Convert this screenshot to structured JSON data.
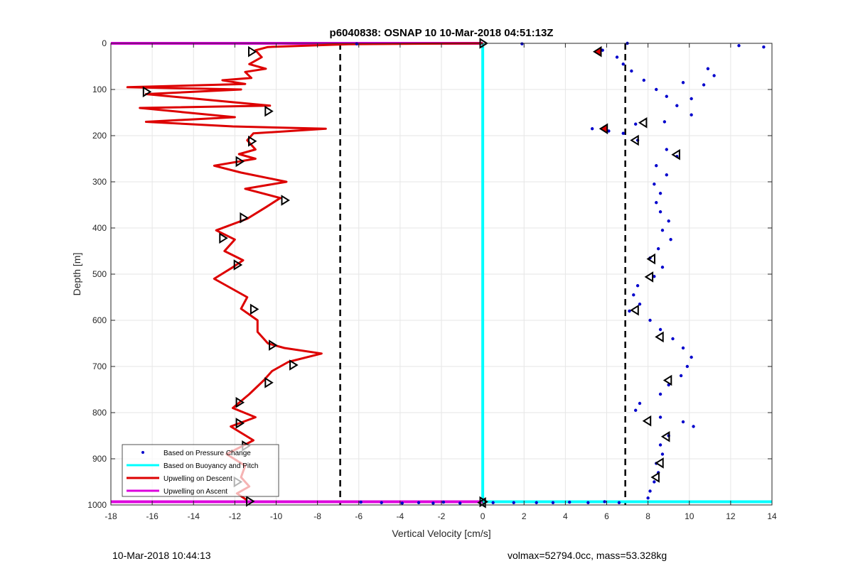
{
  "colors": {
    "pressure": "#0000cc",
    "buoyancy": "#00ffff",
    "descent": "#dd0000",
    "ascent": "#dd00dd",
    "grid": "#e6e6e6",
    "axis": "#262626",
    "threshold": "#000000"
  },
  "chart_data": {
    "type": "scatter",
    "title": "p6040838: OSNAP 10 10-Mar-2018 04:51:13Z",
    "xlabel": "Vertical Velocity [cm/s]",
    "ylabel": "Depth [m]",
    "xlim": [
      -18,
      14
    ],
    "ylim": [
      0,
      1000
    ],
    "y_reversed": true,
    "grid": true,
    "x_ticks": [
      "-18",
      "-16",
      "-14",
      "-12",
      "-10",
      "-8",
      "-6",
      "-4",
      "-2",
      "0",
      "2",
      "4",
      "6",
      "8",
      "10",
      "12",
      "14"
    ],
    "y_ticks": [
      "0",
      "100",
      "200",
      "300",
      "400",
      "500",
      "600",
      "700",
      "800",
      "900",
      "1000"
    ],
    "legend_position": "bottom-left",
    "threshold_lines_x": [
      -6.9,
      6.9
    ],
    "series": [
      {
        "name": "Based on Pressure Change",
        "style": "dots",
        "points": [
          [
            5.5,
            18
          ],
          [
            5.8,
            15
          ],
          [
            6.5,
            30
          ],
          [
            6.8,
            45
          ],
          [
            7.2,
            60
          ],
          [
            7.8,
            80
          ],
          [
            8.4,
            100
          ],
          [
            8.9,
            115
          ],
          [
            9.4,
            135
          ],
          [
            10.1,
            155
          ],
          [
            8.8,
            170
          ],
          [
            7.4,
            175
          ],
          [
            5.3,
            185
          ],
          [
            6.1,
            190
          ],
          [
            6.8,
            195
          ],
          [
            7.5,
            210
          ],
          [
            8.9,
            230
          ],
          [
            9.4,
            245
          ],
          [
            8.4,
            265
          ],
          [
            8.9,
            285
          ],
          [
            8.3,
            305
          ],
          [
            8.6,
            325
          ],
          [
            8.4,
            345
          ],
          [
            8.6,
            365
          ],
          [
            9.0,
            385
          ],
          [
            8.7,
            405
          ],
          [
            9.1,
            425
          ],
          [
            8.5,
            445
          ],
          [
            8.1,
            465
          ],
          [
            8.7,
            485
          ],
          [
            8.3,
            505
          ],
          [
            7.5,
            525
          ],
          [
            7.3,
            545
          ],
          [
            7.6,
            565
          ],
          [
            7.1,
            580
          ],
          [
            8.1,
            600
          ],
          [
            8.6,
            620
          ],
          [
            9.2,
            640
          ],
          [
            9.7,
            660
          ],
          [
            10.1,
            680
          ],
          [
            9.9,
            700
          ],
          [
            9.6,
            720
          ],
          [
            9.0,
            740
          ],
          [
            8.6,
            760
          ],
          [
            7.6,
            780
          ],
          [
            7.4,
            795
          ],
          [
            8.6,
            810
          ],
          [
            9.7,
            820
          ],
          [
            10.2,
            830
          ],
          [
            9.0,
            850
          ],
          [
            8.6,
            870
          ],
          [
            8.7,
            890
          ],
          [
            8.4,
            910
          ],
          [
            8.5,
            930
          ],
          [
            8.3,
            950
          ],
          [
            8.1,
            970
          ],
          [
            8.0,
            985
          ],
          [
            0.5,
            995
          ],
          [
            1.5,
            995
          ],
          [
            2.6,
            995
          ],
          [
            3.4,
            995
          ],
          [
            4.2,
            994
          ],
          [
            5.1,
            995
          ],
          [
            5.9,
            993
          ],
          [
            6.6,
            995
          ],
          [
            -5.9,
            994
          ],
          [
            -4.9,
            995
          ],
          [
            -3.9,
            996
          ],
          [
            -3.1,
            995
          ],
          [
            -2.4,
            996
          ],
          [
            -1.1,
            996
          ],
          [
            -1.9,
            994
          ],
          [
            12.4,
            5
          ],
          [
            13.6,
            8
          ],
          [
            10.9,
            55
          ],
          [
            10.7,
            90
          ],
          [
            11.2,
            70
          ],
          [
            10.1,
            120
          ],
          [
            9.7,
            85
          ],
          [
            -6.1,
            1
          ],
          [
            1.9,
            1
          ],
          [
            7.0,
            0
          ]
        ]
      },
      {
        "name": "Based on Buoyancy and Pitch",
        "style": "line",
        "x": [
          0,
          0
        ],
        "y": [
          0,
          993
        ],
        "bottom_line": {
          "x": [
            0,
            14
          ],
          "y": [
            993,
            993
          ]
        }
      },
      {
        "name": "Upwelling on Descent",
        "style": "line",
        "x": [
          0,
          -6.5,
          -10.4,
          -11.0,
          -10.7,
          -11.3,
          -10.5,
          -11.5,
          -11.2,
          -12.6,
          -11.5,
          -17.2,
          -11.7,
          -16.3,
          -10.3,
          -16.6,
          -12.0,
          -16.3,
          -12.1,
          -7.6,
          -11.1,
          -11.4,
          -11.0,
          -11.8,
          -11.0,
          -13.0,
          -11.7,
          -9.5,
          -11.5,
          -9.8,
          -10.5,
          -11.4,
          -12.9,
          -12.0,
          -12.5,
          -11.6,
          -12.1,
          -13.0,
          -11.4,
          -11.7,
          -10.9,
          -10.9,
          -10.4,
          -9.6,
          -7.8,
          -9.4,
          -10.2,
          -10.6,
          -11.3,
          -12.1,
          -11.0,
          -12.2,
          -11.1,
          -12.4,
          -11.5,
          -11.7,
          -11.3,
          -11.9,
          -11.4
        ],
        "y": [
          0,
          2,
          8,
          15,
          30,
          45,
          55,
          62,
          75,
          80,
          88,
          95,
          100,
          110,
          135,
          140,
          160,
          170,
          180,
          185,
          195,
          210,
          230,
          240,
          250,
          265,
          280,
          300,
          315,
          335,
          355,
          380,
          405,
          425,
          450,
          470,
          485,
          510,
          550,
          575,
          600,
          625,
          650,
          660,
          672,
          690,
          710,
          730,
          760,
          790,
          810,
          830,
          860,
          890,
          915,
          940,
          960,
          975,
          990
        ]
      },
      {
        "name": "Upwelling on Ascent",
        "style": "line",
        "top_line": {
          "x": [
            -18,
            0
          ],
          "y": [
            0,
            0
          ]
        },
        "bottom_line": {
          "x": [
            -18,
            0
          ],
          "y": [
            993,
            993
          ]
        }
      }
    ],
    "markers": {
      "descent_triangles": [
        [
          -11.2,
          18
        ],
        [
          -16.3,
          105
        ],
        [
          -10.4,
          147
        ],
        [
          -11.2,
          212
        ],
        [
          -11.8,
          256
        ],
        [
          -9.6,
          340
        ],
        [
          -11.6,
          378
        ],
        [
          -12.6,
          422
        ],
        [
          -11.9,
          480
        ],
        [
          -11.1,
          576
        ],
        [
          -10.2,
          654
        ],
        [
          -9.2,
          697
        ],
        [
          -10.4,
          735
        ],
        [
          -11.8,
          778
        ],
        [
          -11.8,
          823
        ],
        [
          -11.5,
          872
        ],
        [
          -11.9,
          950
        ],
        [
          -11.3,
          992
        ],
        [
          0,
          0
        ],
        [
          0,
          993
        ]
      ],
      "ascent_triangles": [
        [
          5.6,
          18
        ],
        [
          5.9,
          185
        ],
        [
          7.8,
          172
        ],
        [
          7.4,
          210
        ],
        [
          9.4,
          241
        ],
        [
          8.2,
          467
        ],
        [
          8.1,
          506
        ],
        [
          7.4,
          578
        ],
        [
          8.6,
          636
        ],
        [
          9.0,
          730
        ],
        [
          8.0,
          818
        ],
        [
          8.9,
          852
        ],
        [
          8.6,
          909
        ],
        [
          8.4,
          940
        ],
        [
          0,
          995
        ]
      ]
    }
  },
  "footer": {
    "timestamp": "10-Mar-2018 10:44:13",
    "params": "volmax=52794.0cc, mass=53.328kg"
  }
}
